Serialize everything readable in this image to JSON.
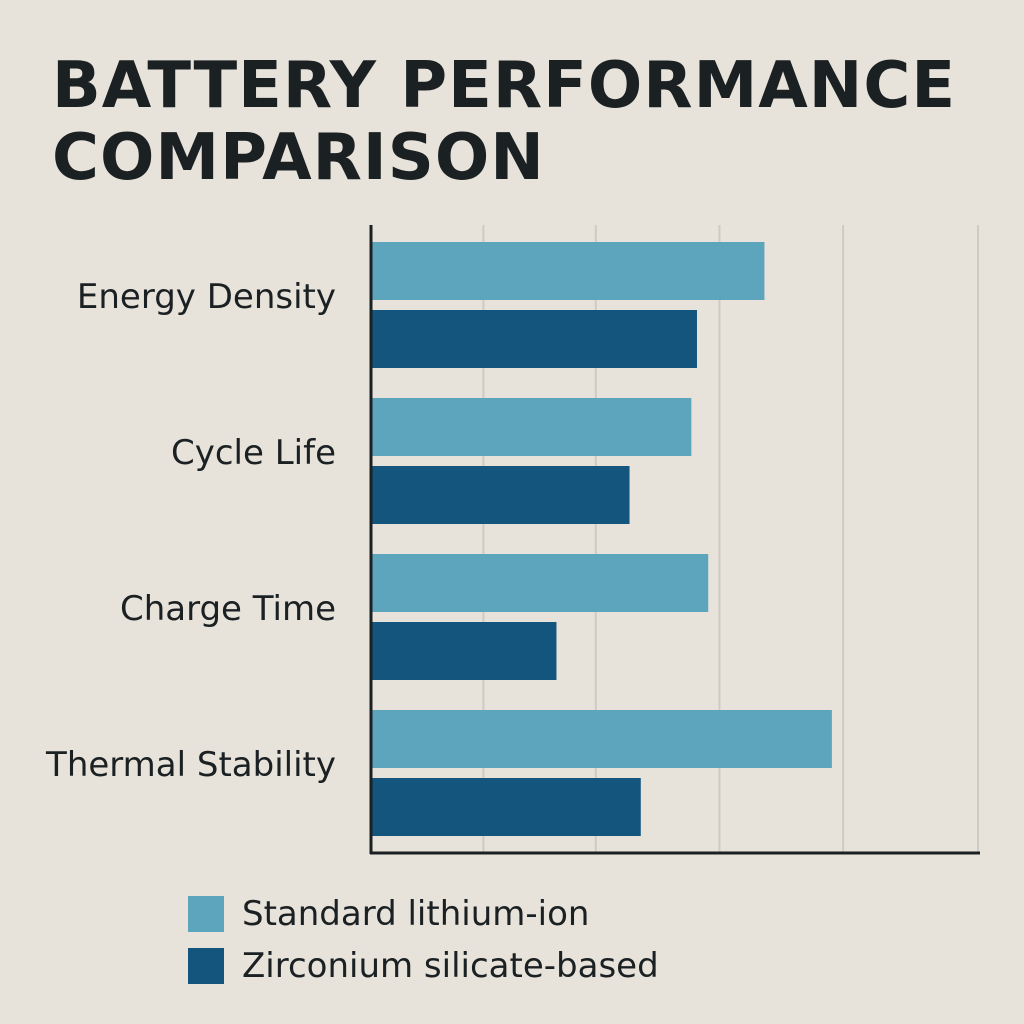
{
  "chart_data": {
    "type": "bar",
    "orientation": "horizontal",
    "title": "BATTERY PERFORMANCE COMPARISON",
    "title_lines": [
      "BATTERY PERFORMANCE",
      "COMPARISON"
    ],
    "categories": [
      "Energy Density",
      "Cycle Life",
      "Charge Time",
      "Thermal Stability"
    ],
    "series": [
      {
        "name": "Standard lithium-ion",
        "color": "#5da5bd",
        "values": [
          3.5,
          2.85,
          3.0,
          4.1
        ]
      },
      {
        "name": "Zirconium silicate-based",
        "color": "#14557e",
        "values": [
          2.9,
          2.3,
          1.65,
          2.4
        ]
      }
    ],
    "xlim": [
      0,
      5.4
    ],
    "grid": true,
    "grid_ticks": [
      1,
      2,
      3.1,
      4.2,
      5.4
    ],
    "tick_labels_shown": false,
    "legend_position": "bottom-left",
    "background": "#e7e3db",
    "grid_color": "#cfcbc3",
    "axis_color": "#1b2023"
  }
}
